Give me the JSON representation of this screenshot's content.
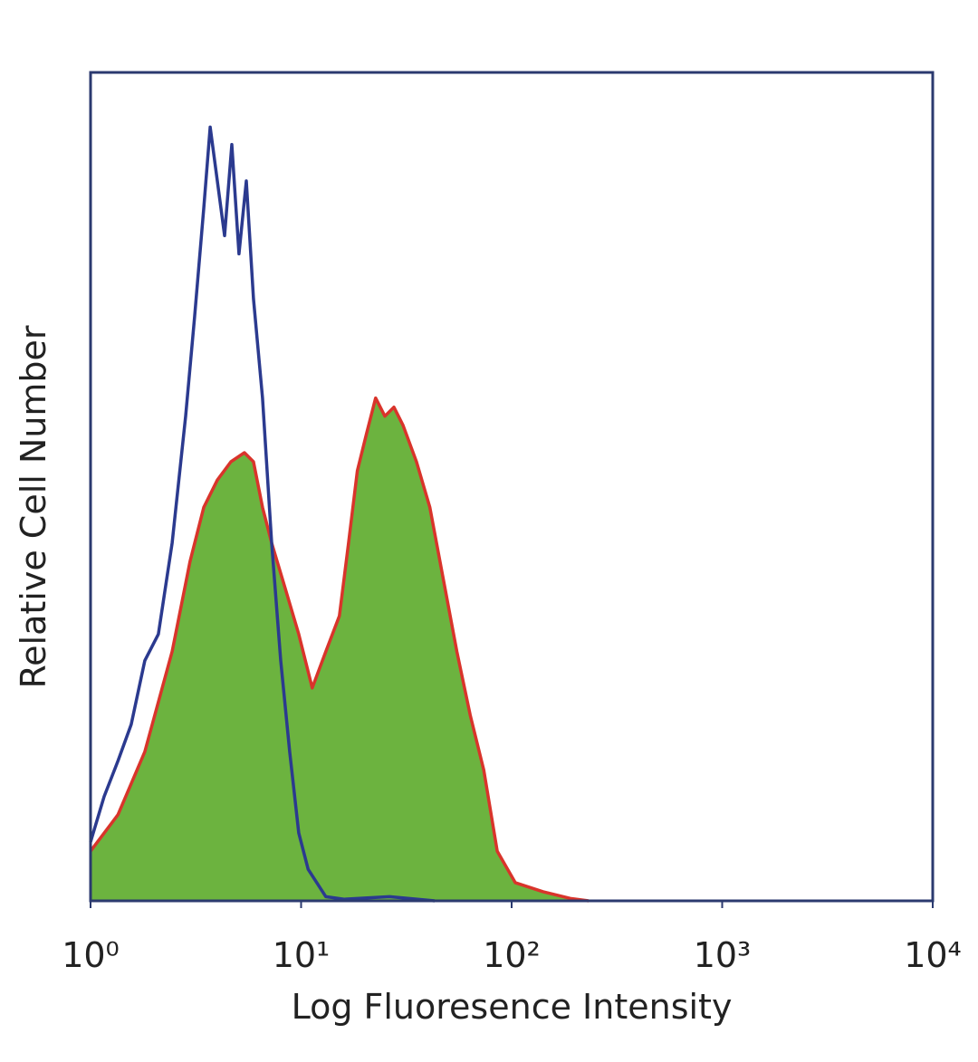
{
  "chart_data": {
    "type": "line",
    "xlabel": "Log Fluoresence Intensity",
    "ylabel": "Relative Cell Number",
    "xscale": "log",
    "xlim": [
      1,
      10000
    ],
    "xticks": [
      {
        "value": 1,
        "label": "10⁰"
      },
      {
        "value": 10,
        "label": "10¹"
      },
      {
        "value": 100,
        "label": "10²"
      },
      {
        "value": 1000,
        "label": "10³"
      },
      {
        "value": 10000,
        "label": "10⁴"
      }
    ],
    "ylim": [
      0,
      100
    ],
    "series": [
      {
        "color": "#d9342b",
        "fill": "#6cb33f",
        "x": [
          1,
          1.35,
          1.81,
          2.44,
          2.97,
          3.45,
          4.0,
          4.64,
          5.38,
          5.94,
          6.56,
          7.25,
          8.41,
          9.75,
          11.3,
          13.1,
          15.2,
          16.8,
          18.5,
          20.4,
          22.6,
          25.0,
          27.6,
          30.5,
          35.3,
          40.9,
          47.4,
          54.9,
          63.6,
          73.7,
          85.4,
          104,
          141,
          190,
          232
        ],
        "values": [
          6.0,
          10.4,
          18.0,
          30.1,
          41.0,
          47.5,
          50.8,
          53.0,
          54.1,
          53.0,
          47.5,
          43.2,
          37.7,
          32.2,
          25.7,
          30.1,
          34.4,
          43.2,
          51.9,
          56.3,
          60.7,
          58.5,
          59.6,
          57.4,
          53.0,
          47.5,
          38.8,
          30.1,
          22.4,
          15.8,
          6.0,
          2.2,
          1.1,
          0.3,
          0
        ]
      },
      {
        "color": "#2b3a8f",
        "x": [
          1,
          1.16,
          1.35,
          1.56,
          1.81,
          2.1,
          2.44,
          2.83,
          3.12,
          3.45,
          3.7,
          4.0,
          4.33,
          4.69,
          5.07,
          5.49,
          5.94,
          6.56,
          7.25,
          8.0,
          8.83,
          9.75,
          10.8,
          13.1,
          16.0,
          26.3,
          43.1
        ],
        "values": [
          7.1,
          12.6,
          16.9,
          21.3,
          29.0,
          32.2,
          43.2,
          58.5,
          70.5,
          83.6,
          93.4,
          86.9,
          80.3,
          91.3,
          78.1,
          86.9,
          72.7,
          60.7,
          43.2,
          29.0,
          18.0,
          8.2,
          3.8,
          0.5,
          0.2,
          0.5,
          0
        ]
      }
    ]
  }
}
